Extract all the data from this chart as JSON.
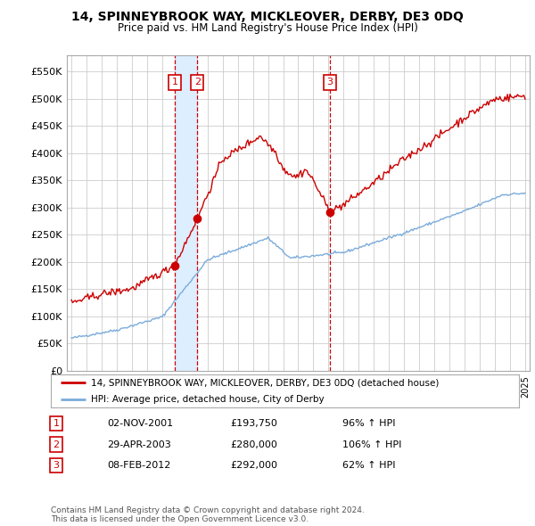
{
  "title": "14, SPINNEYBROOK WAY, MICKLEOVER, DERBY, DE3 0DQ",
  "subtitle": "Price paid vs. HM Land Registry's House Price Index (HPI)",
  "ylabel_ticks": [
    "£0",
    "£50K",
    "£100K",
    "£150K",
    "£200K",
    "£250K",
    "£300K",
    "£350K",
    "£400K",
    "£450K",
    "£500K",
    "£550K"
  ],
  "ytick_values": [
    0,
    50000,
    100000,
    150000,
    200000,
    250000,
    300000,
    350000,
    400000,
    450000,
    500000,
    550000
  ],
  "ylim": [
    0,
    580000
  ],
  "xlim_start": 1994.7,
  "xlim_end": 2025.3,
  "purchases": [
    {
      "label": "1",
      "date": 2001.83,
      "price": 193750,
      "x_line": 2001.83
    },
    {
      "label": "2",
      "date": 2003.32,
      "price": 280000,
      "x_line": 2003.32
    },
    {
      "label": "3",
      "date": 2012.1,
      "price": 292000,
      "x_line": 2012.1
    }
  ],
  "shade_between_x1": 2001.83,
  "shade_between_x2": 2003.32,
  "legend_line1": "14, SPINNEYBROOK WAY, MICKLEOVER, DERBY, DE3 0DQ (detached house)",
  "legend_line2": "HPI: Average price, detached house, City of Derby",
  "table_rows": [
    {
      "num": "1",
      "date": "02-NOV-2001",
      "price": "£193,750",
      "pct": "96% ↑ HPI"
    },
    {
      "num": "2",
      "date": "29-APR-2003",
      "price": "£280,000",
      "pct": "106% ↑ HPI"
    },
    {
      "num": "3",
      "date": "08-FEB-2012",
      "price": "£292,000",
      "pct": "62% ↑ HPI"
    }
  ],
  "footnote": "Contains HM Land Registry data © Crown copyright and database right 2024.\nThis data is licensed under the Open Government Licence v3.0.",
  "red_color": "#cc0000",
  "blue_color": "#7aabdb",
  "shade_color": "#ddeeff",
  "vline_color": "#cc0000",
  "bg_color": "#ffffff",
  "grid_color": "#cccccc"
}
